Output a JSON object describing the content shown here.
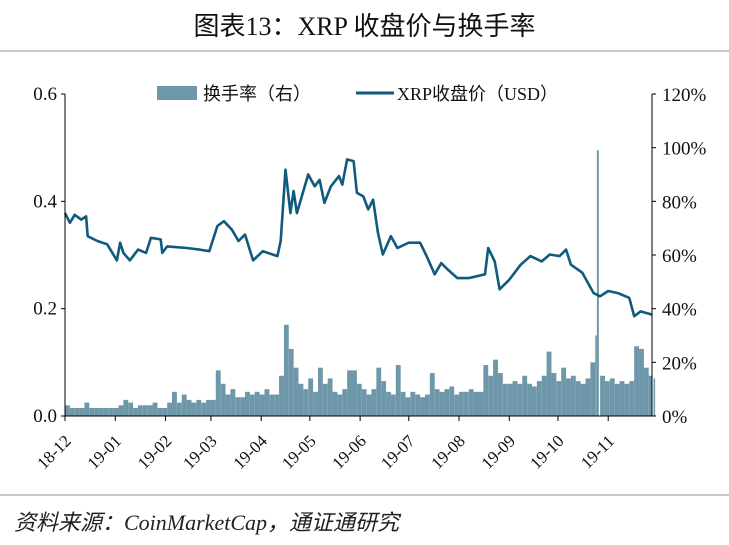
{
  "title": "图表13：XRP 收盘价与换手率",
  "source": "资料来源：CoinMarketCap，通证通研究",
  "chart_data": {
    "type": "bar+line",
    "title": "图表13：XRP 收盘价与换手率",
    "legend_position": "top",
    "grid": false,
    "x_tick_labels": [
      "18-12",
      "19-01",
      "19-02",
      "19-03",
      "19-04",
      "19-05",
      "19-06",
      "19-07",
      "19-08",
      "19-09",
      "19-10",
      "19-11"
    ],
    "x_ticks": [
      "2018-12-01",
      "2019-01-01",
      "2019-02-01",
      "2019-03-01",
      "2019-04-01",
      "2019-05-01",
      "2019-06-01",
      "2019-07-01",
      "2019-08-01",
      "2019-09-01",
      "2019-10-01",
      "2019-11-01"
    ],
    "xlim": [
      "2018-12-01",
      "2019-11-28"
    ],
    "y_left": {
      "ylim": [
        0,
        0.6
      ],
      "tick_labels": [
        "0.0",
        "0.2",
        "0.4",
        "0.6"
      ],
      "ticks": [
        0,
        0.2,
        0.4,
        0.6
      ]
    },
    "y_right": {
      "ylim": [
        0,
        120
      ],
      "tick_labels": [
        "0%",
        "20%",
        "40%",
        "60%",
        "80%",
        "100%",
        "120%"
      ],
      "ticks": [
        0,
        20,
        40,
        60,
        80,
        100,
        120
      ]
    },
    "series": [
      {
        "name": "换手率（右）",
        "type": "bar",
        "axis": "right",
        "unit": "%",
        "color": "#6e98aa",
        "points": [
          [
            "2018-12-01",
            4
          ],
          [
            "2018-12-04",
            3
          ],
          [
            "2018-12-07",
            3
          ],
          [
            "2018-12-10",
            3
          ],
          [
            "2018-12-13",
            5
          ],
          [
            "2018-12-16",
            3
          ],
          [
            "2018-12-19",
            3
          ],
          [
            "2018-12-22",
            3
          ],
          [
            "2018-12-25",
            3
          ],
          [
            "2018-12-28",
            3
          ],
          [
            "2018-12-31",
            3
          ],
          [
            "2019-01-03",
            4
          ],
          [
            "2019-01-06",
            6
          ],
          [
            "2019-01-09",
            5
          ],
          [
            "2019-01-12",
            3
          ],
          [
            "2019-01-15",
            4
          ],
          [
            "2019-01-18",
            4
          ],
          [
            "2019-01-21",
            4
          ],
          [
            "2019-01-24",
            5
          ],
          [
            "2019-01-27",
            3
          ],
          [
            "2019-01-30",
            3
          ],
          [
            "2019-02-02",
            5
          ],
          [
            "2019-02-05",
            9
          ],
          [
            "2019-02-08",
            5
          ],
          [
            "2019-02-11",
            8
          ],
          [
            "2019-02-14",
            6
          ],
          [
            "2019-02-17",
            5
          ],
          [
            "2019-02-20",
            6
          ],
          [
            "2019-02-23",
            5
          ],
          [
            "2019-02-26",
            6
          ],
          [
            "2019-03-01",
            6
          ],
          [
            "2019-03-04",
            17
          ],
          [
            "2019-03-07",
            12
          ],
          [
            "2019-03-10",
            8
          ],
          [
            "2019-03-13",
            10
          ],
          [
            "2019-03-16",
            7
          ],
          [
            "2019-03-19",
            7
          ],
          [
            "2019-03-22",
            9
          ],
          [
            "2019-03-25",
            8
          ],
          [
            "2019-03-28",
            9
          ],
          [
            "2019-03-31",
            8
          ],
          [
            "2019-04-03",
            10
          ],
          [
            "2019-04-06",
            8
          ],
          [
            "2019-04-09",
            8
          ],
          [
            "2019-04-12",
            15
          ],
          [
            "2019-04-15",
            34
          ],
          [
            "2019-04-18",
            25
          ],
          [
            "2019-04-21",
            18
          ],
          [
            "2019-04-24",
            12
          ],
          [
            "2019-04-27",
            10
          ],
          [
            "2019-04-30",
            14
          ],
          [
            "2019-05-03",
            9
          ],
          [
            "2019-05-06",
            18
          ],
          [
            "2019-05-09",
            12
          ],
          [
            "2019-05-12",
            14
          ],
          [
            "2019-05-15",
            9
          ],
          [
            "2019-05-18",
            8
          ],
          [
            "2019-05-21",
            10
          ],
          [
            "2019-05-24",
            17
          ],
          [
            "2019-05-27",
            17
          ],
          [
            "2019-05-30",
            12
          ],
          [
            "2019-06-02",
            10
          ],
          [
            "2019-06-05",
            8
          ],
          [
            "2019-06-08",
            10
          ],
          [
            "2019-06-11",
            18
          ],
          [
            "2019-06-14",
            13
          ],
          [
            "2019-06-17",
            9
          ],
          [
            "2019-06-20",
            8
          ],
          [
            "2019-06-23",
            19
          ],
          [
            "2019-06-26",
            9
          ],
          [
            "2019-06-29",
            7
          ],
          [
            "2019-07-02",
            9
          ],
          [
            "2019-07-05",
            8
          ],
          [
            "2019-07-08",
            7
          ],
          [
            "2019-07-11",
            8
          ],
          [
            "2019-07-14",
            16
          ],
          [
            "2019-07-17",
            10
          ],
          [
            "2019-07-20",
            9
          ],
          [
            "2019-07-23",
            10
          ],
          [
            "2019-07-26",
            11
          ],
          [
            "2019-07-29",
            8
          ],
          [
            "2019-08-01",
            9
          ],
          [
            "2019-08-04",
            9
          ],
          [
            "2019-08-07",
            10
          ],
          [
            "2019-08-10",
            9
          ],
          [
            "2019-08-13",
            9
          ],
          [
            "2019-08-16",
            19
          ],
          [
            "2019-08-19",
            15
          ],
          [
            "2019-08-22",
            21
          ],
          [
            "2019-08-25",
            16
          ],
          [
            "2019-08-28",
            12
          ],
          [
            "2019-08-31",
            12
          ],
          [
            "2019-09-03",
            13
          ],
          [
            "2019-09-06",
            12
          ],
          [
            "2019-09-09",
            15
          ],
          [
            "2019-09-12",
            12
          ],
          [
            "2019-09-15",
            11
          ],
          [
            "2019-09-18",
            13
          ],
          [
            "2019-09-21",
            15
          ],
          [
            "2019-09-24",
            24
          ],
          [
            "2019-09-27",
            16
          ],
          [
            "2019-09-30",
            13
          ],
          [
            "2019-10-03",
            18
          ],
          [
            "2019-10-06",
            14
          ],
          [
            "2019-10-09",
            15
          ],
          [
            "2019-10-12",
            13
          ],
          [
            "2019-10-15",
            12
          ],
          [
            "2019-10-18",
            14
          ],
          [
            "2019-10-21",
            20
          ],
          [
            "2019-10-24",
            30
          ],
          [
            "2019-10-25",
            99
          ],
          [
            "2019-10-27",
            15
          ],
          [
            "2019-10-30",
            13
          ],
          [
            "2019-11-02",
            14
          ],
          [
            "2019-11-05",
            12
          ],
          [
            "2019-11-08",
            13
          ],
          [
            "2019-11-11",
            12
          ],
          [
            "2019-11-14",
            13
          ],
          [
            "2019-11-17",
            26
          ],
          [
            "2019-11-20",
            25
          ],
          [
            "2019-11-23",
            18
          ],
          [
            "2019-11-26",
            15
          ],
          [
            "2019-11-29",
            14
          ]
        ]
      },
      {
        "name": "XRP收盘价（USD）",
        "type": "line",
        "axis": "left",
        "color": "#0f5a7d",
        "points": [
          [
            "2018-12-01",
            0.378
          ],
          [
            "2018-12-04",
            0.36
          ],
          [
            "2018-12-07",
            0.375
          ],
          [
            "2018-12-11",
            0.366
          ],
          [
            "2018-12-14",
            0.372
          ],
          [
            "2018-12-15",
            0.335
          ],
          [
            "2018-12-21",
            0.326
          ],
          [
            "2018-12-27",
            0.32
          ],
          [
            "2019-01-02",
            0.29
          ],
          [
            "2019-01-04",
            0.323
          ],
          [
            "2019-01-06",
            0.304
          ],
          [
            "2019-01-10",
            0.29
          ],
          [
            "2019-01-15",
            0.31
          ],
          [
            "2019-01-20",
            0.304
          ],
          [
            "2019-01-23",
            0.332
          ],
          [
            "2019-01-29",
            0.329
          ],
          [
            "2019-01-30",
            0.304
          ],
          [
            "2019-02-02",
            0.316
          ],
          [
            "2019-02-14",
            0.313
          ],
          [
            "2019-02-22",
            0.31
          ],
          [
            "2019-02-28",
            0.307
          ],
          [
            "2019-03-05",
            0.354
          ],
          [
            "2019-03-09",
            0.363
          ],
          [
            "2019-03-14",
            0.347
          ],
          [
            "2019-03-18",
            0.326
          ],
          [
            "2019-03-22",
            0.338
          ],
          [
            "2019-03-27",
            0.29
          ],
          [
            "2019-04-02",
            0.307
          ],
          [
            "2019-04-11",
            0.298
          ],
          [
            "2019-04-13",
            0.326
          ],
          [
            "2019-04-16",
            0.459
          ],
          [
            "2019-04-19",
            0.378
          ],
          [
            "2019-04-21",
            0.419
          ],
          [
            "2019-04-23",
            0.378
          ],
          [
            "2019-04-30",
            0.45
          ],
          [
            "2019-05-04",
            0.428
          ],
          [
            "2019-05-07",
            0.44
          ],
          [
            "2019-05-10",
            0.397
          ],
          [
            "2019-05-14",
            0.428
          ],
          [
            "2019-05-19",
            0.447
          ],
          [
            "2019-05-21",
            0.431
          ],
          [
            "2019-05-24",
            0.478
          ],
          [
            "2019-05-28",
            0.475
          ],
          [
            "2019-05-30",
            0.416
          ],
          [
            "2019-06-03",
            0.409
          ],
          [
            "2019-06-06",
            0.385
          ],
          [
            "2019-06-09",
            0.403
          ],
          [
            "2019-06-12",
            0.341
          ],
          [
            "2019-06-15",
            0.301
          ],
          [
            "2019-06-20",
            0.335
          ],
          [
            "2019-06-24",
            0.313
          ],
          [
            "2019-07-01",
            0.323
          ],
          [
            "2019-07-08",
            0.323
          ],
          [
            "2019-07-12",
            0.298
          ],
          [
            "2019-07-17",
            0.264
          ],
          [
            "2019-07-21",
            0.285
          ],
          [
            "2019-07-25",
            0.273
          ],
          [
            "2019-07-31",
            0.257
          ],
          [
            "2019-08-07",
            0.257
          ],
          [
            "2019-08-17",
            0.264
          ],
          [
            "2019-08-19",
            0.313
          ],
          [
            "2019-08-23",
            0.288
          ],
          [
            "2019-08-26",
            0.236
          ],
          [
            "2019-09-01",
            0.254
          ],
          [
            "2019-09-08",
            0.282
          ],
          [
            "2019-09-14",
            0.298
          ],
          [
            "2019-09-21",
            0.288
          ],
          [
            "2019-09-26",
            0.301
          ],
          [
            "2019-10-02",
            0.298
          ],
          [
            "2019-10-06",
            0.31
          ],
          [
            "2019-10-09",
            0.282
          ],
          [
            "2019-10-16",
            0.267
          ],
          [
            "2019-10-23",
            0.229
          ],
          [
            "2019-10-27",
            0.223
          ],
          [
            "2019-11-01",
            0.233
          ],
          [
            "2019-11-07",
            0.229
          ],
          [
            "2019-11-14",
            0.22
          ],
          [
            "2019-11-17",
            0.186
          ],
          [
            "2019-11-21",
            0.195
          ],
          [
            "2019-11-28",
            0.189
          ]
        ]
      }
    ]
  }
}
